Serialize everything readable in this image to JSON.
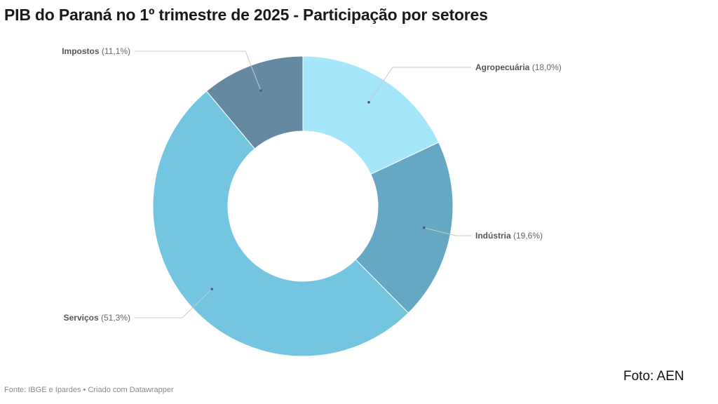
{
  "title": "PIB do Paraná no 1º trimestre de 2025 - Participação por setores",
  "source": "Fonte: IBGE e Ipardes • Criado com Datawrapper",
  "credit": "Foto: AEN",
  "chart_data": {
    "type": "pie",
    "donut": true,
    "title": "PIB do Paraná no 1º trimestre de 2025 - Participação por setores",
    "unit": "%",
    "start": "12 o'clock, clockwise",
    "slices": [
      {
        "name": "Agropecuária",
        "value": 18.0,
        "value_label": "(18,0%)",
        "color": "#a6e6fb"
      },
      {
        "name": "Indústria",
        "value": 19.6,
        "value_label": "(19,6%)",
        "color": "#66a7c4"
      },
      {
        "name": "Serviços",
        "value": 51.3,
        "value_label": "(51,3%)",
        "color": "#74c5e0"
      },
      {
        "name": "Impostos",
        "value": 11.1,
        "value_label": "(11,1%)",
        "color": "#6689a2"
      }
    ]
  }
}
